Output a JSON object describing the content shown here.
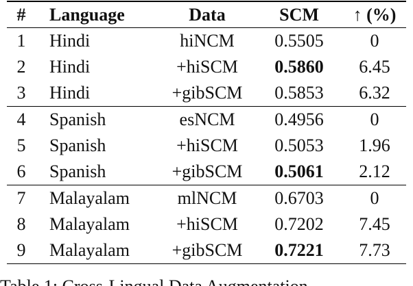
{
  "table": {
    "header": [
      "#",
      "Language",
      "Data",
      "SCM",
      "↑ (%)"
    ],
    "groups": [
      {
        "rows": [
          [
            "1",
            "Hindi",
            "hiNCM",
            "0.5505",
            "0"
          ],
          [
            "2",
            "Hindi",
            "+hiSCM",
            "0.5860",
            "6.45"
          ],
          [
            "3",
            "Hindi",
            "+gibSCM",
            "0.5853",
            "6.32"
          ]
        ]
      },
      {
        "rows": [
          [
            "4",
            "Spanish",
            "esNCM",
            "0.4956",
            "0"
          ],
          [
            "5",
            "Spanish",
            "+hiSCM",
            "0.5053",
            "1.96"
          ],
          [
            "6",
            "Spanish",
            "+gibSCM",
            "0.5061",
            "2.12"
          ]
        ]
      },
      {
        "rows": [
          [
            "7",
            "Malayalam",
            "mlNCM",
            "0.6703",
            "0"
          ],
          [
            "8",
            "Malayalam",
            "+hiSCM",
            "0.7202",
            "7.45"
          ],
          [
            "9",
            "Malayalam",
            "+gibSCM",
            "0.7221",
            "7.73"
          ]
        ]
      }
    ]
  },
  "caption": "Table 1: Cross-Lingual Data Augmentation"
}
